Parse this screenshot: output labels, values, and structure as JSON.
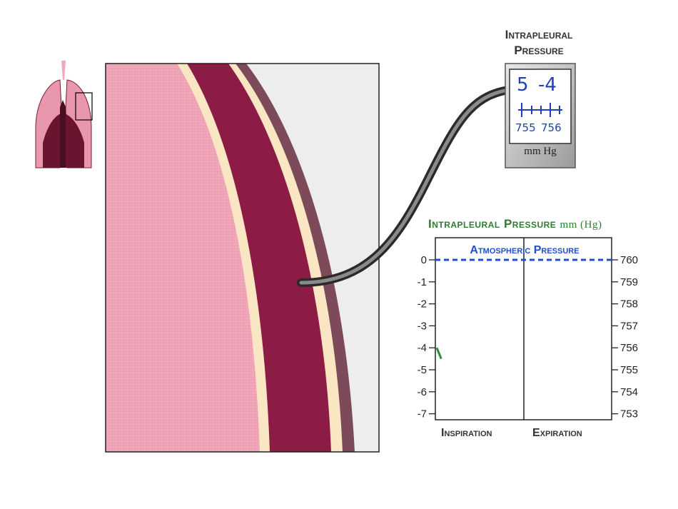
{
  "gauge": {
    "title_line1": "Intrapleural",
    "title_line2": "Pressure",
    "big_left": "5",
    "big_right": "-4",
    "scale_left": "755",
    "scale_right": "756",
    "unit": "mm Hg"
  },
  "chart_data": {
    "type": "line",
    "title": "Intrapleural Pressure",
    "title_unit": "mm (Hg)",
    "reference_line_label": "Atmospheric Pressure",
    "left_axis_ticks": [
      "0",
      "-1",
      "-2",
      "-3",
      "-4",
      "-5",
      "-6",
      "-7"
    ],
    "left_axis_values": [
      0,
      -1,
      -2,
      -3,
      -4,
      -5,
      -6,
      -7
    ],
    "right_axis_ticks": [
      "760",
      "759",
      "758",
      "757",
      "756",
      "755",
      "754",
      "753"
    ],
    "right_axis_values": [
      760,
      759,
      758,
      757,
      756,
      755,
      754,
      753
    ],
    "ylim": [
      -7,
      0
    ],
    "reference_value": 0,
    "phases": [
      "Inspiration",
      "Expiration"
    ],
    "series": [
      {
        "points": [
          {
            "phase_fraction": 0.0,
            "value": -4.0
          },
          {
            "phase_fraction": 0.05,
            "value": -4.5
          }
        ]
      }
    ],
    "colors": {
      "reference": "#1f4fd1",
      "trace": "#2e8b3a",
      "title": "#2e7d32"
    }
  },
  "colors": {
    "lung_pink": "#f0a3b8",
    "pleura_cream": "#fbe6c4",
    "chest_wall": "#8c1c45",
    "outer_wall": "#7d4a5a"
  }
}
